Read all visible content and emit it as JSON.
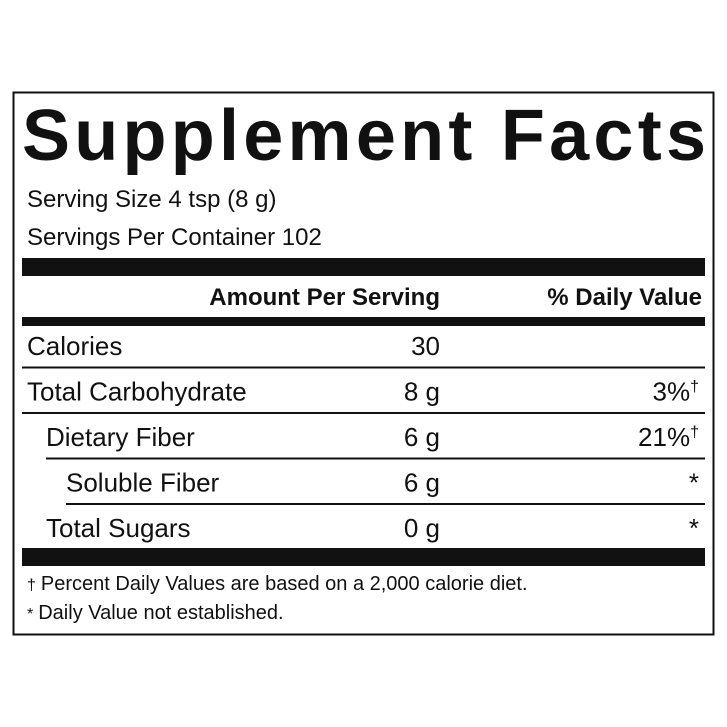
{
  "title": "Supplement Facts",
  "serving_size": "Serving Size 4 tsp (8 g)",
  "servings_per_container": "Servings Per Container 102",
  "header": {
    "amount": "Amount Per Serving",
    "daily_value": "% Daily Value"
  },
  "rows": [
    {
      "name": "Calories",
      "amount": "30"
    },
    {
      "name": "Total Carbohydrate",
      "amount": "8 g",
      "dv": "3%",
      "dv_mark": "†"
    },
    {
      "name": "Dietary Fiber",
      "amount": "6 g",
      "dv": "21%",
      "dv_mark": "†"
    },
    {
      "name": "Soluble Fiber",
      "amount": "6 g",
      "dv": "*"
    },
    {
      "name": "Total Sugars",
      "amount": "0 g",
      "dv": "*"
    }
  ],
  "footnotes": [
    {
      "symbol": "†",
      "text": "Percent Daily Values are based on a 2,000 calorie diet."
    },
    {
      "symbol": "*",
      "text": "Daily Value not established."
    }
  ]
}
